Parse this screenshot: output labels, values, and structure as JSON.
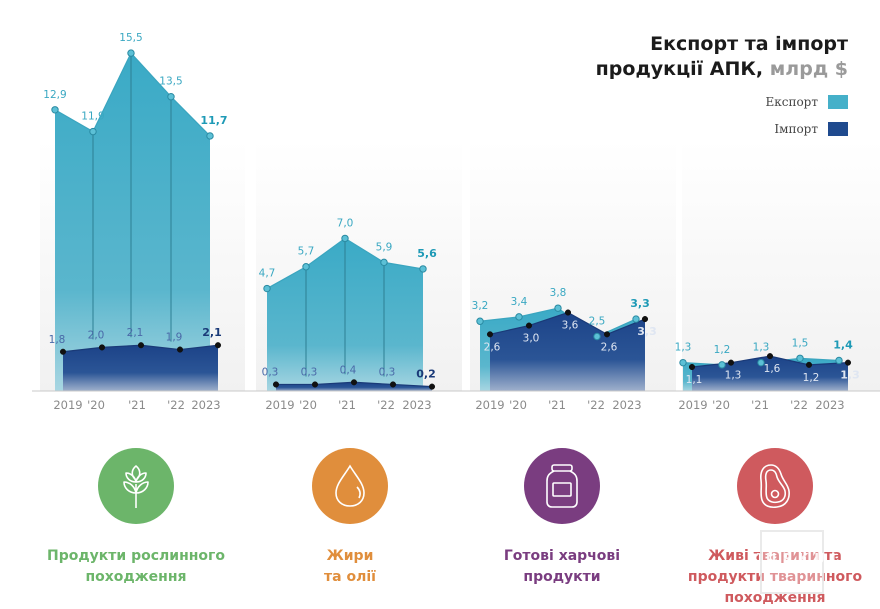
{
  "chart_data": {
    "type": "area",
    "title_main": "Експорт та імпорт продукції АПК,",
    "title_line1": "Експорт та імпорт",
    "title_line2": "продукції АПК,",
    "title_unit": "млрд $",
    "legend": [
      {
        "name": "Експорт",
        "color": "#45b0c9"
      },
      {
        "name": "Імпорт",
        "color": "#1f4a8e"
      }
    ],
    "legend_placement": "top-right",
    "x_tick_labels": [
      "2019",
      "'20",
      "'21",
      "'22",
      "2023"
    ],
    "ylim": [
      0,
      16
    ],
    "grid": false,
    "panels": [
      {
        "category": "Продукти рослинного походження",
        "label_lines": [
          "Продукти рослинного",
          "походження"
        ],
        "color": "#6cb56a",
        "icon": "wheat-icon",
        "series": [
          {
            "name": "Експорт",
            "values": [
              12.9,
              11.9,
              15.5,
              13.5,
              11.7
            ],
            "labels": [
              "12,9",
              "11,9",
              "15,5",
              "13,5",
              "11,7"
            ]
          },
          {
            "name": "Імпорт",
            "values": [
              1.8,
              2.0,
              2.1,
              1.9,
              2.1
            ],
            "labels": [
              "1,8",
              "2,0",
              "2,1",
              "1,9",
              "2,1"
            ]
          }
        ]
      },
      {
        "category": "Жири та олії",
        "label_lines": [
          "Жири",
          "та олії"
        ],
        "color": "#e08e3c",
        "icon": "oil-drop-icon",
        "series": [
          {
            "name": "Експорт",
            "values": [
              4.7,
              5.7,
              7.0,
              5.9,
              5.6
            ],
            "labels": [
              "4,7",
              "5,7",
              "7,0",
              "5,9",
              "5,6"
            ]
          },
          {
            "name": "Імпорт",
            "values": [
              0.3,
              0.3,
              0.4,
              0.3,
              0.2
            ],
            "labels": [
              "0,3",
              "0,3",
              "0,4",
              "0,3",
              "0,2"
            ]
          }
        ]
      },
      {
        "category": "Готові харчові продукти",
        "label_lines": [
          "Готові харчові",
          "продукти"
        ],
        "color": "#7a3d80",
        "icon": "jar-icon",
        "series": [
          {
            "name": "Експорт",
            "values": [
              3.2,
              3.4,
              3.8,
              2.5,
              3.3
            ],
            "labels": [
              "3,2",
              "3,4",
              "3,8",
              "2,5",
              "3,3"
            ]
          },
          {
            "name": "Імпорт",
            "values": [
              2.6,
              3.0,
              3.6,
              2.6,
              3.3
            ],
            "labels": [
              "2,6",
              "3,0",
              "3,6",
              "2,6",
              "3,3"
            ]
          }
        ]
      },
      {
        "category": "Живі тварини та продукти тваринного походження",
        "label_lines": [
          "Живі тварини та",
          "продукти тваринного",
          "походження"
        ],
        "color": "#cf5a5e",
        "icon": "meat-steak-icon",
        "series": [
          {
            "name": "Експорт",
            "values": [
              1.3,
              1.2,
              1.3,
              1.5,
              1.4
            ],
            "labels": [
              "1,3",
              "1,2",
              "1,3",
              "1,5",
              "1,4"
            ]
          },
          {
            "name": "Імпорт",
            "values": [
              1.1,
              1.3,
              1.6,
              1.2,
              1.3
            ],
            "labels": [
              "1,1",
              "1,3",
              "1,6",
              "1,2",
              "1,3"
            ]
          }
        ]
      }
    ]
  },
  "watermark": "KURKUL"
}
